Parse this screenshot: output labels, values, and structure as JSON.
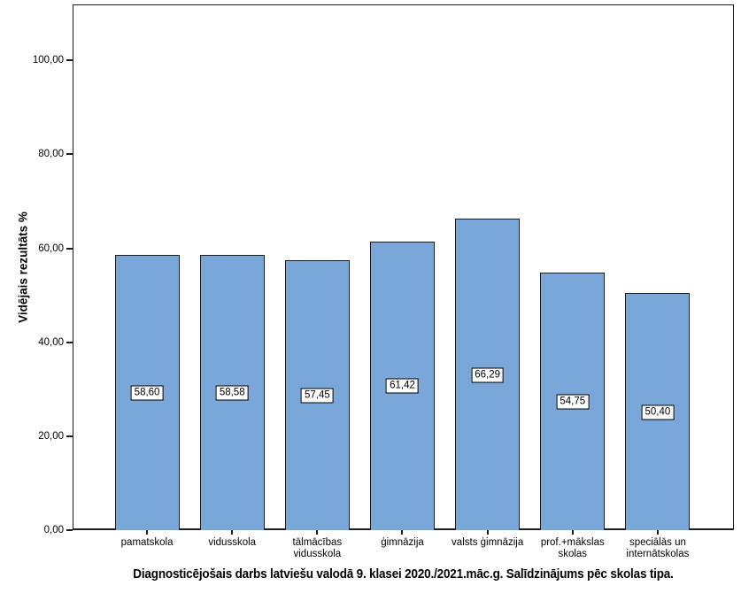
{
  "window": {
    "background": "#ffffff"
  },
  "chart_data": {
    "type": "bar",
    "title": "Diagnosticējošais darbs latviešu valodā 9. klasei 2020./2021.māc.g. Salīdzinājums pēc skolas tipa.",
    "ylabel": "Vidējais rezultāts %",
    "xlabel": "",
    "categories": [
      "pamatskola",
      "vidusskola",
      "tālmācības vidusskola",
      "ģimnāzija",
      "valsts ģimnāzija",
      "prof.+mākslas skolas",
      "speciālās un internātskolas"
    ],
    "category_label_lines": [
      [
        "pamatskola"
      ],
      [
        "vidusskola"
      ],
      [
        "tālmācības",
        "vidusskola"
      ],
      [
        "ģimnāzija"
      ],
      [
        "valsts ģimnāzija"
      ],
      [
        "prof.+mākslas",
        "skolas"
      ],
      [
        "speciālās un",
        "internātskolas"
      ]
    ],
    "values": [
      58.6,
      58.58,
      57.45,
      61.42,
      66.29,
      54.75,
      50.4
    ],
    "value_labels": [
      "58,60",
      "58,58",
      "57,45",
      "61,42",
      "66,29",
      "54,75",
      "50,40"
    ],
    "yticks": [
      {
        "value": 0,
        "label": "0,00"
      },
      {
        "value": 20,
        "label": "20,00"
      },
      {
        "value": 40,
        "label": "40,00"
      },
      {
        "value": 60,
        "label": "60,00"
      },
      {
        "value": 80,
        "label": "80,00"
      },
      {
        "value": 100,
        "label": "100,00"
      }
    ],
    "ylim": [
      0,
      111.9
    ],
    "grid": false,
    "legend": "none",
    "colors": {
      "bar_fill": "#7AA7D9",
      "bar_border": "#1c1c1c",
      "axis": "#1c1c1c",
      "label_box_bg": "#ffffff",
      "label_box_border": "#000000"
    }
  }
}
